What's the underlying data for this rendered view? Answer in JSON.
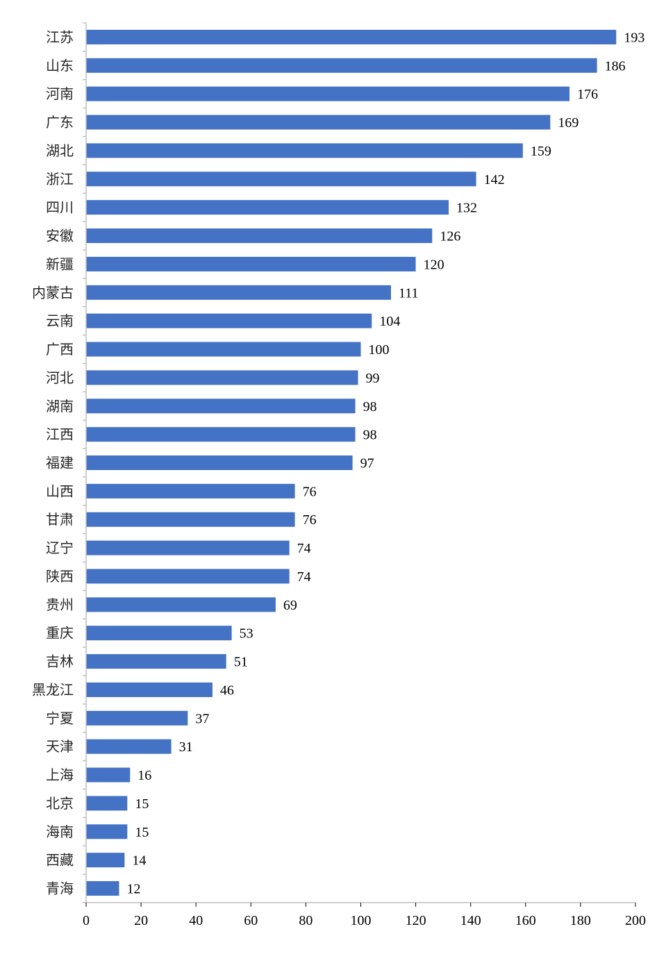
{
  "chart_data": {
    "type": "bar",
    "orientation": "horizontal",
    "categories": [
      "江苏",
      "山东",
      "河南",
      "广东",
      "湖北",
      "浙江",
      "四川",
      "安徽",
      "新疆",
      "内蒙古",
      "云南",
      "广西",
      "河北",
      "湖南",
      "江西",
      "福建",
      "山西",
      "甘肃",
      "辽宁",
      "陕西",
      "贵州",
      "重庆",
      "吉林",
      "黑龙江",
      "宁夏",
      "天津",
      "上海",
      "北京",
      "海南",
      "西藏",
      "青海"
    ],
    "values": [
      193,
      186,
      176,
      169,
      159,
      142,
      132,
      126,
      120,
      111,
      104,
      100,
      99,
      98,
      98,
      97,
      76,
      76,
      74,
      74,
      69,
      53,
      51,
      46,
      37,
      31,
      16,
      15,
      15,
      14,
      12
    ],
    "value_labels": [
      "193",
      "186",
      "176",
      "169",
      "159",
      "142",
      "132",
      "126",
      "120",
      "111",
      "104",
      "100",
      "99",
      "98",
      "98",
      "97",
      "76",
      "76",
      "74",
      "74",
      "69",
      "53",
      "51",
      "46",
      "37",
      "31",
      "16",
      "15",
      "15",
      "14",
      "12"
    ],
    "xlim": [
      0,
      200
    ],
    "xticks": [
      "0",
      "20",
      "40",
      "60",
      "80",
      "100",
      "120",
      "140",
      "160",
      "180",
      "200"
    ],
    "grid": false,
    "legend": "none",
    "bar_color": "#4472C4",
    "title": "",
    "xlabel": "",
    "ylabel": ""
  }
}
